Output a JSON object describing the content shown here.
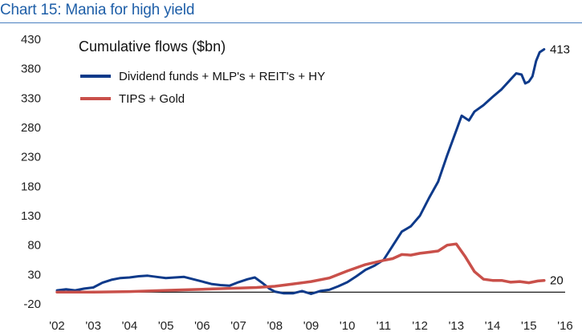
{
  "header": {
    "title": "Chart 15: Mania for high yield"
  },
  "chart_data": {
    "type": "line",
    "title": "Cumulative flows ($bn)",
    "xlabel": "",
    "ylabel": "",
    "ylim": [
      -20,
      430
    ],
    "xlim": [
      2002,
      2016
    ],
    "y_ticks": [
      430,
      380,
      330,
      280,
      230,
      180,
      130,
      80,
      30,
      -20
    ],
    "x_ticks": [
      {
        "label": "'02",
        "value": 2002
      },
      {
        "label": "'03",
        "value": 2003
      },
      {
        "label": "'04",
        "value": 2004
      },
      {
        "label": "'05",
        "value": 2005
      },
      {
        "label": "'06",
        "value": 2006
      },
      {
        "label": "'07",
        "value": 2007
      },
      {
        "label": "'08",
        "value": 2008
      },
      {
        "label": "'09",
        "value": 2009
      },
      {
        "label": "'10",
        "value": 2010
      },
      {
        "label": "'11",
        "value": 2011
      },
      {
        "label": "'12",
        "value": 2012
      },
      {
        "label": "'13",
        "value": 2013
      },
      {
        "label": "'14",
        "value": 2014
      },
      {
        "label": "'15",
        "value": 2015
      },
      {
        "label": "'16",
        "value": 2016
      }
    ],
    "grid": false,
    "legend_position": "top-left",
    "series": [
      {
        "name": "Dividend funds + MLP's + REIT's + HY",
        "color": "#0e3a8a",
        "end_label": "413",
        "points": [
          [
            2002.0,
            3
          ],
          [
            2002.25,
            5
          ],
          [
            2002.5,
            3
          ],
          [
            2002.75,
            6
          ],
          [
            2003.0,
            8
          ],
          [
            2003.25,
            16
          ],
          [
            2003.5,
            21
          ],
          [
            2003.75,
            24
          ],
          [
            2004.0,
            25
          ],
          [
            2004.25,
            27
          ],
          [
            2004.5,
            28
          ],
          [
            2004.75,
            26
          ],
          [
            2005.0,
            24
          ],
          [
            2005.25,
            25
          ],
          [
            2005.5,
            26
          ],
          [
            2005.75,
            22
          ],
          [
            2006.0,
            18
          ],
          [
            2006.25,
            14
          ],
          [
            2006.5,
            12
          ],
          [
            2006.75,
            11
          ],
          [
            2007.0,
            17
          ],
          [
            2007.25,
            22
          ],
          [
            2007.45,
            25
          ],
          [
            2007.65,
            16
          ],
          [
            2007.85,
            6
          ],
          [
            2008.0,
            1
          ],
          [
            2008.25,
            -2
          ],
          [
            2008.5,
            -2
          ],
          [
            2008.75,
            2
          ],
          [
            2009.0,
            -3
          ],
          [
            2009.25,
            2
          ],
          [
            2009.5,
            4
          ],
          [
            2009.75,
            10
          ],
          [
            2010.0,
            17
          ],
          [
            2010.25,
            27
          ],
          [
            2010.5,
            38
          ],
          [
            2010.75,
            45
          ],
          [
            2011.0,
            55
          ],
          [
            2011.25,
            79
          ],
          [
            2011.5,
            103
          ],
          [
            2011.75,
            112
          ],
          [
            2012.0,
            130
          ],
          [
            2012.25,
            160
          ],
          [
            2012.5,
            188
          ],
          [
            2012.75,
            233
          ],
          [
            2013.0,
            275
          ],
          [
            2013.15,
            300
          ],
          [
            2013.35,
            292
          ],
          [
            2013.5,
            307
          ],
          [
            2013.75,
            318
          ],
          [
            2014.0,
            332
          ],
          [
            2014.25,
            345
          ],
          [
            2014.5,
            362
          ],
          [
            2014.65,
            372
          ],
          [
            2014.8,
            370
          ],
          [
            2014.9,
            355
          ],
          [
            2015.0,
            358
          ],
          [
            2015.1,
            367
          ],
          [
            2015.2,
            393
          ],
          [
            2015.3,
            408
          ],
          [
            2015.42,
            413
          ]
        ]
      },
      {
        "name": "TIPS + Gold",
        "color": "#c9504a",
        "end_label": "20",
        "points": [
          [
            2002.0,
            0
          ],
          [
            2003.0,
            0
          ],
          [
            2004.0,
            1
          ],
          [
            2005.0,
            3
          ],
          [
            2006.0,
            5
          ],
          [
            2007.0,
            7
          ],
          [
            2007.5,
            8
          ],
          [
            2008.0,
            10
          ],
          [
            2008.5,
            14
          ],
          [
            2009.0,
            18
          ],
          [
            2009.5,
            24
          ],
          [
            2010.0,
            36
          ],
          [
            2010.5,
            47
          ],
          [
            2011.0,
            54
          ],
          [
            2011.25,
            57
          ],
          [
            2011.5,
            64
          ],
          [
            2011.75,
            63
          ],
          [
            2012.0,
            66
          ],
          [
            2012.25,
            68
          ],
          [
            2012.5,
            70
          ],
          [
            2012.75,
            80
          ],
          [
            2013.0,
            82
          ],
          [
            2013.25,
            60
          ],
          [
            2013.5,
            35
          ],
          [
            2013.75,
            22
          ],
          [
            2014.0,
            20
          ],
          [
            2014.25,
            20
          ],
          [
            2014.5,
            17
          ],
          [
            2014.75,
            18
          ],
          [
            2015.0,
            16
          ],
          [
            2015.25,
            19
          ],
          [
            2015.42,
            20
          ]
        ]
      }
    ]
  }
}
